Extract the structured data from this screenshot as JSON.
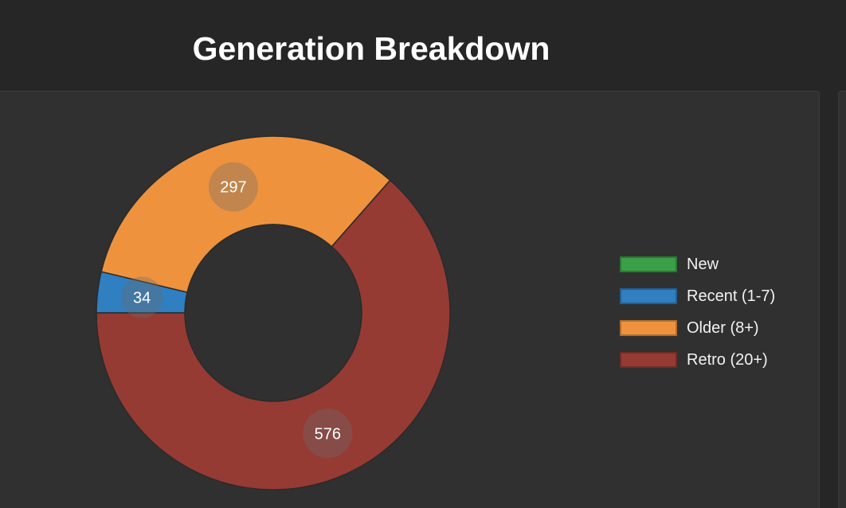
{
  "chart_data": {
    "type": "pie",
    "title": "Generation Breakdown",
    "categories": [
      "New",
      "Recent (1-7)",
      "Older (8+)",
      "Retro (20+)"
    ],
    "values": [
      0,
      34,
      297,
      576
    ],
    "colors": [
      "#3aa047",
      "#2f7fc1",
      "#ee923d",
      "#953b34"
    ],
    "donut": true,
    "legend_position": "right",
    "data_labels": true
  },
  "colors": {
    "background": "#262626",
    "card": "#303030",
    "title": "#ffffff"
  }
}
